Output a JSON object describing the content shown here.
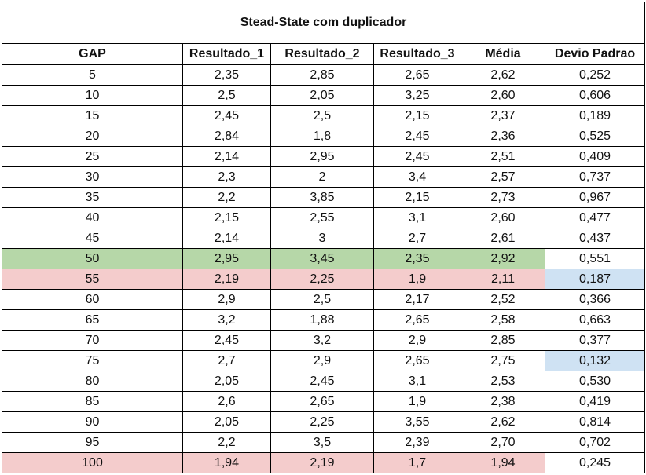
{
  "title": "Stead-State com duplicador",
  "headers": [
    "GAP",
    "Resultado_1",
    "Resultado_2",
    "Resultado_3",
    "Média",
    "Devio Padrao"
  ],
  "colors": {
    "green": "#b6d7a8",
    "red": "#f4cccc",
    "blue": "#cfe2f3"
  },
  "rows": [
    {
      "cells": [
        "5",
        "2,35",
        "2,85",
        "2,65",
        "2,62",
        "0,252"
      ],
      "fills": [
        "",
        "",
        "",
        "",
        "",
        ""
      ]
    },
    {
      "cells": [
        "10",
        "2,5",
        "2,05",
        "3,25",
        "2,60",
        "0,606"
      ],
      "fills": [
        "",
        "",
        "",
        "",
        "",
        ""
      ]
    },
    {
      "cells": [
        "15",
        "2,45",
        "2,5",
        "2,15",
        "2,37",
        "0,189"
      ],
      "fills": [
        "",
        "",
        "",
        "",
        "",
        ""
      ]
    },
    {
      "cells": [
        "20",
        "2,84",
        "1,8",
        "2,45",
        "2,36",
        "0,525"
      ],
      "fills": [
        "",
        "",
        "",
        "",
        "",
        ""
      ]
    },
    {
      "cells": [
        "25",
        "2,14",
        "2,95",
        "2,45",
        "2,51",
        "0,409"
      ],
      "fills": [
        "",
        "",
        "",
        "",
        "",
        ""
      ]
    },
    {
      "cells": [
        "30",
        "2,3",
        "2",
        "3,4",
        "2,57",
        "0,737"
      ],
      "fills": [
        "",
        "",
        "",
        "",
        "",
        ""
      ]
    },
    {
      "cells": [
        "35",
        "2,2",
        "3,85",
        "2,15",
        "2,73",
        "0,967"
      ],
      "fills": [
        "",
        "",
        "",
        "",
        "",
        ""
      ]
    },
    {
      "cells": [
        "40",
        "2,15",
        "2,55",
        "3,1",
        "2,60",
        "0,477"
      ],
      "fills": [
        "",
        "",
        "",
        "",
        "",
        ""
      ]
    },
    {
      "cells": [
        "45",
        "2,14",
        "3",
        "2,7",
        "2,61",
        "0,437"
      ],
      "fills": [
        "",
        "",
        "",
        "",
        "",
        ""
      ]
    },
    {
      "cells": [
        "50",
        "2,95",
        "3,45",
        "2,35",
        "2,92",
        "0,551"
      ],
      "fills": [
        "green",
        "green",
        "green",
        "green",
        "green",
        ""
      ]
    },
    {
      "cells": [
        "55",
        "2,19",
        "2,25",
        "1,9",
        "2,11",
        "0,187"
      ],
      "fills": [
        "red",
        "red",
        "red",
        "red",
        "red",
        "blue"
      ]
    },
    {
      "cells": [
        "60",
        "2,9",
        "2,5",
        "2,17",
        "2,52",
        "0,366"
      ],
      "fills": [
        "",
        "",
        "",
        "",
        "",
        ""
      ]
    },
    {
      "cells": [
        "65",
        "3,2",
        "1,88",
        "2,65",
        "2,58",
        "0,663"
      ],
      "fills": [
        "",
        "",
        "",
        "",
        "",
        ""
      ]
    },
    {
      "cells": [
        "70",
        "2,45",
        "3,2",
        "2,9",
        "2,85",
        "0,377"
      ],
      "fills": [
        "",
        "",
        "",
        "",
        "",
        ""
      ]
    },
    {
      "cells": [
        "75",
        "2,7",
        "2,9",
        "2,65",
        "2,75",
        "0,132"
      ],
      "fills": [
        "",
        "",
        "",
        "",
        "",
        "blue"
      ]
    },
    {
      "cells": [
        "80",
        "2,05",
        "2,45",
        "3,1",
        "2,53",
        "0,530"
      ],
      "fills": [
        "",
        "",
        "",
        "",
        "",
        ""
      ]
    },
    {
      "cells": [
        "85",
        "2,6",
        "2,65",
        "1,9",
        "2,38",
        "0,419"
      ],
      "fills": [
        "",
        "",
        "",
        "",
        "",
        ""
      ]
    },
    {
      "cells": [
        "90",
        "2,05",
        "2,25",
        "3,55",
        "2,62",
        "0,814"
      ],
      "fills": [
        "",
        "",
        "",
        "",
        "",
        ""
      ]
    },
    {
      "cells": [
        "95",
        "2,2",
        "3,5",
        "2,39",
        "2,70",
        "0,702"
      ],
      "fills": [
        "",
        "",
        "",
        "",
        "",
        ""
      ]
    },
    {
      "cells": [
        "100",
        "1,94",
        "2,19",
        "1,7",
        "1,94",
        "0,245"
      ],
      "fills": [
        "red",
        "red",
        "red",
        "red",
        "red",
        ""
      ]
    }
  ]
}
